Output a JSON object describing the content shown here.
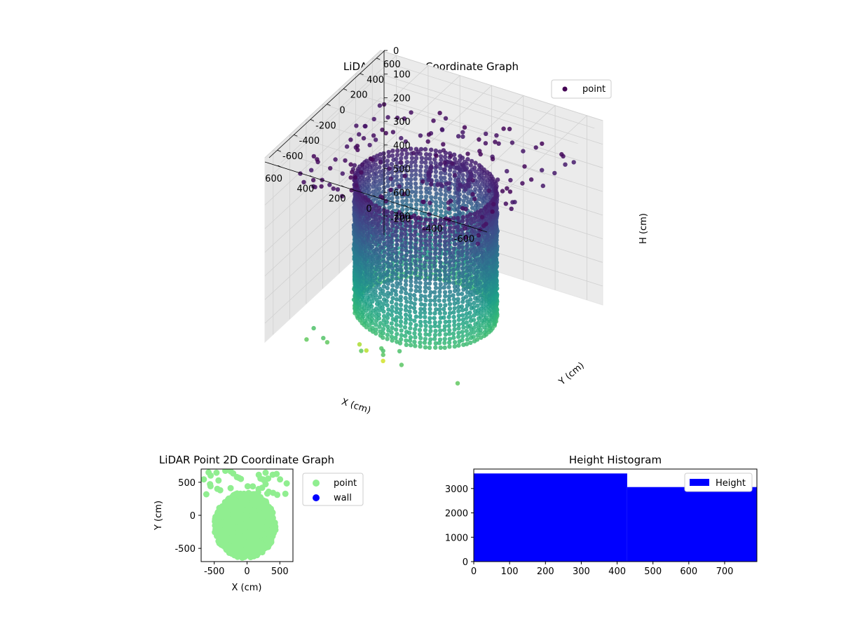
{
  "chart_data": [
    {
      "type": "scatter3d",
      "title": "LiDAR Point 3D Coordinate Graph",
      "xlabel": "X (cm)",
      "ylabel": "Y (cm)",
      "zlabel": "H (cm)",
      "xlim": [
        -700,
        700
      ],
      "ylim": [
        -700,
        700
      ],
      "zlim": [
        0,
        780
      ],
      "zaxis_inverted": true,
      "x_ticks": [
        "-600",
        "-400",
        "-200",
        "0",
        "200",
        "400",
        "600"
      ],
      "y_ticks": [
        "-600",
        "-400",
        "-200",
        "0",
        "200",
        "400",
        "600"
      ],
      "z_ticks": [
        "0",
        "100",
        "200",
        "300",
        "400",
        "500",
        "600",
        "700"
      ],
      "legend": [
        {
          "label": "point",
          "color": "#440154"
        }
      ],
      "legend_position": "top-right",
      "colormap": "viridis",
      "grid": true,
      "description_series": {
        "wall_ring": {
          "radius": 400,
          "center": [
            0,
            -100
          ],
          "h_range": [
            0,
            350
          ]
        },
        "ceiling_points": {
          "h_range": [
            0,
            120
          ],
          "extent": [
            -600,
            600
          ]
        },
        "floor_outliers": {
          "h_range": [
            650,
            780
          ]
        }
      }
    },
    {
      "type": "scatter",
      "title": "LiDAR Point 2D Coordinate Graph",
      "xlabel": "X (cm)",
      "ylabel": "Y (cm)",
      "xlim": [
        -700,
        700
      ],
      "ylim": [
        -700,
        700
      ],
      "x_ticks": [
        "-500",
        "0",
        "500"
      ],
      "y_ticks": [
        "-500",
        "0",
        "500"
      ],
      "series": [
        {
          "name": "point",
          "color": "#90ee90"
        },
        {
          "name": "wall",
          "color": "#0000ff"
        }
      ],
      "legend_position": "outside-right"
    },
    {
      "type": "bar",
      "title": "Height Histogram",
      "xlim": [
        0,
        790
      ],
      "ylim": [
        0,
        3800
      ],
      "x_ticks": [
        "0",
        "100",
        "200",
        "300",
        "400",
        "500",
        "600",
        "700"
      ],
      "y_ticks": [
        "0",
        "1000",
        "2000",
        "3000"
      ],
      "bins": [
        {
          "x0": 0,
          "x1": 428,
          "value": 3620
        },
        {
          "x0": 428,
          "x1": 790,
          "value": 3060
        }
      ],
      "series": [
        {
          "name": "Height",
          "color": "#0000ff"
        }
      ],
      "legend_position": "top-right"
    }
  ]
}
